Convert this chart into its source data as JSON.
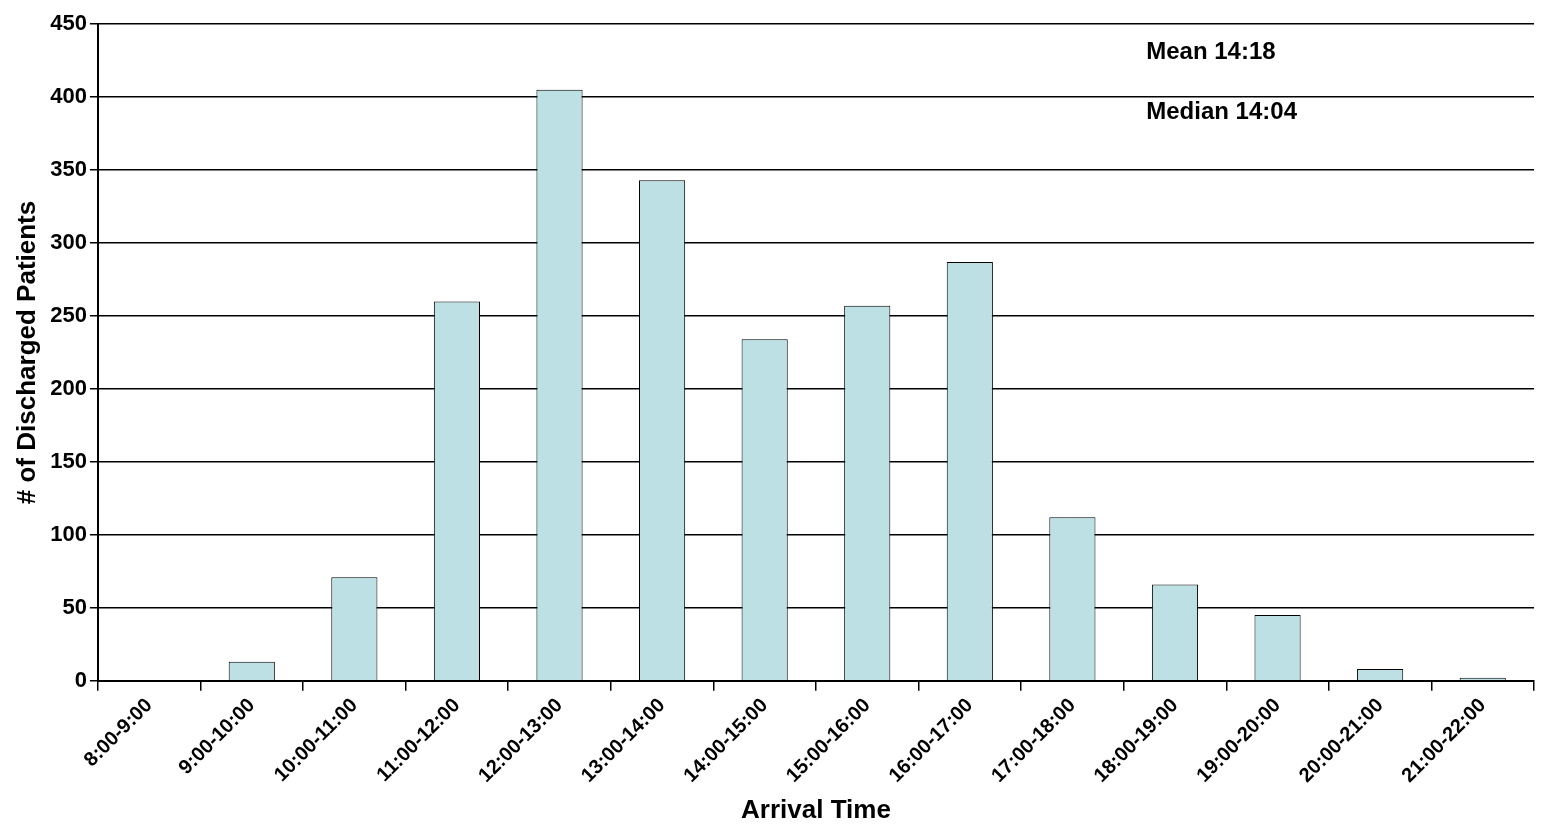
{
  "chart_data": {
    "type": "bar",
    "xlabel": "Arrival Time",
    "ylabel": "# of Discharged Patients",
    "categories": [
      "8:00-9:00",
      "9:00-10:00",
      "10:00-11:00",
      "11:00-12:00",
      "12:00-13:00",
      "13:00-14:00",
      "14:00-15:00",
      "15:00-16:00",
      "16:00-17:00",
      "17:00-18:00",
      "18:00-19:00",
      "19:00-20:00",
      "20:00-21:00",
      "21:00-22:00"
    ],
    "values": [
      0,
      13,
      71,
      260,
      405,
      343,
      234,
      257,
      287,
      112,
      66,
      45,
      8,
      2
    ],
    "color": "#bce0e3",
    "ylim": [
      0,
      450
    ],
    "yticks": [
      0,
      50,
      100,
      150,
      200,
      250,
      300,
      350,
      400,
      450
    ],
    "grid": "y",
    "annotations": [
      "Mean 14:18",
      "Median 14:04"
    ]
  }
}
